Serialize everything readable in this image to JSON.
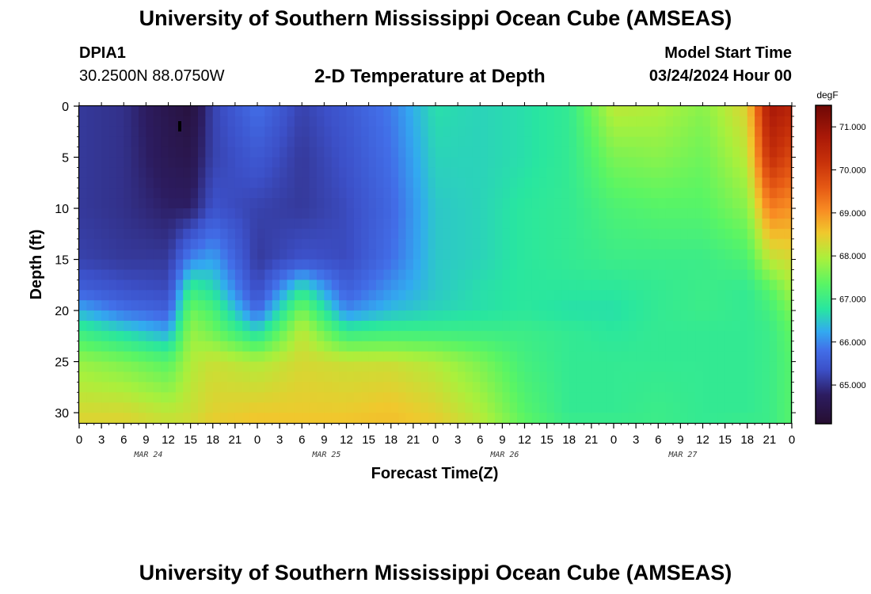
{
  "header": {
    "title": "University of Southern Mississippi Ocean Cube (AMSEAS)",
    "station_id": "DPIA1",
    "station_coords": "30.2500N  88.0750W",
    "plot_title": "2-D Temperature at Depth",
    "model_label": "Model Start Time",
    "model_date": "03/24/2024 Hour 00"
  },
  "footer": {
    "title": "University of Southern Mississippi Ocean Cube (AMSEAS)"
  },
  "chart_data": {
    "type": "heatmap",
    "title": "2-D Temperature at Depth",
    "xlabel": "Forecast Time(Z)",
    "ylabel": "Depth (ft)",
    "x_tick_labels": [
      "0",
      "3",
      "6",
      "9",
      "12",
      "15",
      "18",
      "21",
      "0",
      "3",
      "6",
      "9",
      "12",
      "15",
      "18",
      "21",
      "0",
      "3",
      "6",
      "9",
      "12",
      "15",
      "18",
      "21",
      "0",
      "3",
      "6",
      "9",
      "12",
      "15",
      "18",
      "21",
      "0"
    ],
    "date_labels": [
      {
        "label": "MAR 24",
        "hour": 9
      },
      {
        "label": "MAR 25",
        "hour": 33
      },
      {
        "label": "MAR 26",
        "hour": 57
      },
      {
        "label": "MAR 27",
        "hour": 81
      }
    ],
    "x_range_hours": [
      0,
      96
    ],
    "y_ticks": [
      0,
      5,
      10,
      15,
      20,
      25,
      30
    ],
    "y_range_ft": [
      0,
      31
    ],
    "colorbar": {
      "unit": "degF",
      "range": [
        64.1,
        71.5
      ],
      "ticks": [
        "65.000",
        "66.000",
        "67.000",
        "68.000",
        "69.000",
        "70.000",
        "71.000"
      ],
      "tick_values": [
        65,
        66,
        67,
        68,
        69,
        70,
        71
      ]
    },
    "profile_hours": [
      0,
      6,
      12,
      15,
      18,
      24,
      30,
      36,
      42,
      48,
      54,
      60,
      66,
      72,
      78,
      84,
      90,
      93,
      96
    ],
    "profile_depths_ft": [
      0,
      5,
      10,
      15,
      18,
      20,
      22,
      25,
      30,
      31
    ],
    "temperature_degF": [
      [
        65.1,
        65.1,
        65.1,
        65.2,
        65.6,
        66.3,
        67.0,
        67.8,
        68.3,
        68.4
      ],
      [
        65.0,
        65.0,
        65.0,
        65.1,
        65.4,
        65.8,
        66.6,
        67.6,
        68.3,
        68.4
      ],
      [
        64.5,
        64.6,
        64.8,
        65.1,
        65.3,
        65.6,
        66.2,
        67.3,
        68.1,
        68.2
      ],
      [
        64.3,
        64.5,
        64.8,
        66.0,
        67.0,
        67.5,
        67.8,
        68.0,
        68.2,
        68.3
      ],
      [
        65.2,
        65.2,
        65.4,
        66.2,
        66.7,
        67.2,
        67.5,
        68.2,
        68.4,
        68.5
      ],
      [
        65.8,
        65.5,
        65.2,
        65.1,
        65.3,
        65.7,
        66.6,
        68.0,
        68.5,
        68.6
      ],
      [
        65.2,
        65.1,
        65.1,
        65.4,
        66.8,
        67.6,
        68.1,
        68.3,
        68.5,
        68.6
      ],
      [
        65.5,
        65.4,
        65.3,
        65.3,
        65.6,
        66.0,
        66.9,
        68.2,
        68.5,
        68.6
      ],
      [
        65.9,
        65.8,
        65.7,
        65.8,
        66.1,
        66.4,
        67.0,
        68.2,
        68.6,
        68.6
      ],
      [
        66.7,
        66.6,
        66.5,
        66.5,
        66.5,
        66.6,
        67.0,
        68.0,
        68.4,
        68.5
      ],
      [
        66.6,
        66.6,
        66.6,
        66.6,
        66.7,
        66.7,
        67.0,
        67.6,
        68.0,
        68.1
      ],
      [
        66.7,
        66.7,
        66.8,
        66.8,
        66.8,
        66.8,
        67.0,
        67.1,
        67.3,
        67.4
      ],
      [
        66.9,
        66.9,
        66.9,
        66.9,
        66.8,
        66.7,
        66.9,
        66.9,
        66.9,
        67.0
      ],
      [
        68.1,
        67.6,
        67.2,
        67.0,
        66.8,
        66.7,
        66.8,
        66.9,
        66.9,
        67.0
      ],
      [
        68.0,
        67.7,
        67.3,
        67.0,
        66.9,
        66.9,
        66.9,
        66.9,
        67.0,
        67.0
      ],
      [
        67.7,
        67.5,
        67.3,
        67.0,
        67.0,
        67.0,
        66.9,
        66.9,
        66.9,
        66.9
      ],
      [
        68.4,
        68.1,
        67.7,
        67.2,
        66.9,
        66.9,
        66.9,
        66.9,
        66.9,
        67.0
      ],
      [
        70.8,
        70.3,
        69.2,
        68.1,
        67.3,
        67.1,
        67.0,
        67.0,
        67.0,
        67.0
      ],
      [
        70.5,
        69.8,
        69.0,
        68.3,
        67.9,
        67.6,
        67.4,
        67.3,
        67.3,
        67.3
      ]
    ]
  }
}
